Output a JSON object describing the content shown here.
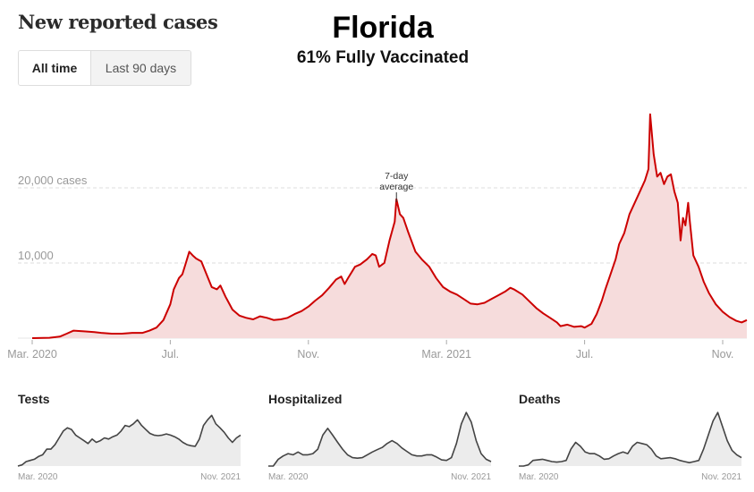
{
  "header": {
    "title": "New reported cases",
    "state": "Florida",
    "subtitle": "61% Fully Vaccinated"
  },
  "toggle": {
    "options": [
      {
        "label": "All time",
        "active": true
      },
      {
        "label": "Last 90 days",
        "active": false
      }
    ]
  },
  "colors": {
    "cases_line": "#cc0000",
    "cases_fill": "#f6dcdc",
    "small_line": "#444444",
    "small_fill": "#ececec",
    "grid": "#dddddd"
  },
  "chart_data": [
    {
      "type": "area",
      "title": "New reported cases",
      "series_name": "7-day average",
      "annotation": {
        "text_line1": "7-day",
        "text_line2": "average",
        "at_month": 10.55
      },
      "ylabel_suffix": "cases",
      "yticks": [
        {
          "value": 10000,
          "label": "10,000"
        },
        {
          "value": 20000,
          "label": "20,000 cases"
        }
      ],
      "ylim": [
        0,
        30000
      ],
      "xlim_months_from_mar_2020": [
        0,
        20.7
      ],
      "xticks": [
        {
          "month": 0,
          "label": "Mar. 2020"
        },
        {
          "month": 4,
          "label": "Jul."
        },
        {
          "month": 8,
          "label": "Nov."
        },
        {
          "month": 12,
          "label": "Mar. 2021"
        },
        {
          "month": 16,
          "label": "Jul."
        },
        {
          "month": 20,
          "label": "Nov."
        }
      ],
      "grid": true,
      "points_month_value": [
        [
          0,
          0
        ],
        [
          0.5,
          50
        ],
        [
          0.8,
          200
        ],
        [
          1.0,
          600
        ],
        [
          1.2,
          1000
        ],
        [
          1.5,
          900
        ],
        [
          1.8,
          800
        ],
        [
          2.0,
          700
        ],
        [
          2.3,
          600
        ],
        [
          2.6,
          600
        ],
        [
          2.9,
          700
        ],
        [
          3.2,
          700
        ],
        [
          3.4,
          1000
        ],
        [
          3.6,
          1400
        ],
        [
          3.8,
          2400
        ],
        [
          4.0,
          4500
        ],
        [
          4.1,
          6500
        ],
        [
          4.25,
          8000
        ],
        [
          4.35,
          8500
        ],
        [
          4.45,
          10000
        ],
        [
          4.55,
          11500
        ],
        [
          4.65,
          11000
        ],
        [
          4.75,
          10600
        ],
        [
          4.9,
          10200
        ],
        [
          5.05,
          8500
        ],
        [
          5.2,
          6800
        ],
        [
          5.35,
          6500
        ],
        [
          5.45,
          7000
        ],
        [
          5.6,
          5500
        ],
        [
          5.8,
          3800
        ],
        [
          6.0,
          3000
        ],
        [
          6.2,
          2700
        ],
        [
          6.4,
          2500
        ],
        [
          6.6,
          2900
        ],
        [
          6.8,
          2700
        ],
        [
          7.0,
          2400
        ],
        [
          7.2,
          2500
        ],
        [
          7.4,
          2700
        ],
        [
          7.6,
          3200
        ],
        [
          7.8,
          3600
        ],
        [
          8.0,
          4200
        ],
        [
          8.2,
          5000
        ],
        [
          8.4,
          5700
        ],
        [
          8.6,
          6700
        ],
        [
          8.8,
          7800
        ],
        [
          8.95,
          8200
        ],
        [
          9.05,
          7200
        ],
        [
          9.15,
          8000
        ],
        [
          9.35,
          9500
        ],
        [
          9.5,
          9800
        ],
        [
          9.7,
          10500
        ],
        [
          9.85,
          11200
        ],
        [
          9.95,
          11000
        ],
        [
          10.05,
          9500
        ],
        [
          10.2,
          10000
        ],
        [
          10.35,
          13000
        ],
        [
          10.5,
          15500
        ],
        [
          10.55,
          18500
        ],
        [
          10.65,
          16500
        ],
        [
          10.75,
          16000
        ],
        [
          10.9,
          14000
        ],
        [
          11.1,
          11500
        ],
        [
          11.3,
          10400
        ],
        [
          11.5,
          9500
        ],
        [
          11.7,
          8000
        ],
        [
          11.9,
          6800
        ],
        [
          12.1,
          6200
        ],
        [
          12.3,
          5800
        ],
        [
          12.5,
          5200
        ],
        [
          12.7,
          4600
        ],
        [
          12.9,
          4500
        ],
        [
          13.1,
          4700
        ],
        [
          13.3,
          5200
        ],
        [
          13.5,
          5700
        ],
        [
          13.7,
          6200
        ],
        [
          13.85,
          6700
        ],
        [
          13.95,
          6500
        ],
        [
          14.2,
          5800
        ],
        [
          14.4,
          4900
        ],
        [
          14.6,
          4000
        ],
        [
          14.8,
          3300
        ],
        [
          15.0,
          2700
        ],
        [
          15.2,
          2100
        ],
        [
          15.3,
          1600
        ],
        [
          15.5,
          1800
        ],
        [
          15.7,
          1500
        ],
        [
          15.9,
          1600
        ],
        [
          16.0,
          1400
        ],
        [
          16.2,
          1900
        ],
        [
          16.35,
          3200
        ],
        [
          16.5,
          5000
        ],
        [
          16.6,
          6500
        ],
        [
          16.75,
          8500
        ],
        [
          16.9,
          10500
        ],
        [
          17.0,
          12500
        ],
        [
          17.15,
          14000
        ],
        [
          17.3,
          16500
        ],
        [
          17.45,
          18000
        ],
        [
          17.6,
          19500
        ],
        [
          17.75,
          21000
        ],
        [
          17.85,
          22500
        ],
        [
          17.9,
          29800
        ],
        [
          18.0,
          24500
        ],
        [
          18.1,
          21500
        ],
        [
          18.2,
          22000
        ],
        [
          18.3,
          20500
        ],
        [
          18.4,
          21500
        ],
        [
          18.5,
          21800
        ],
        [
          18.6,
          19500
        ],
        [
          18.7,
          18000
        ],
        [
          18.78,
          13000
        ],
        [
          18.85,
          16000
        ],
        [
          18.92,
          15000
        ],
        [
          19.0,
          18000
        ],
        [
          19.05,
          15500
        ],
        [
          19.15,
          11000
        ],
        [
          19.3,
          9500
        ],
        [
          19.45,
          7500
        ],
        [
          19.6,
          6000
        ],
        [
          19.8,
          4500
        ],
        [
          20.0,
          3500
        ],
        [
          20.2,
          2800
        ],
        [
          20.4,
          2300
        ],
        [
          20.55,
          2100
        ],
        [
          20.7,
          2400
        ]
      ]
    },
    {
      "type": "area",
      "title": "Tests",
      "xticks": [
        {
          "label": "Mar. 2020"
        },
        {
          "label": "Nov. 2021"
        }
      ],
      "relative_values": [
        0,
        0.02,
        0.08,
        0.1,
        0.12,
        0.17,
        0.2,
        0.3,
        0.3,
        0.38,
        0.5,
        0.62,
        0.68,
        0.65,
        0.55,
        0.5,
        0.45,
        0.4,
        0.48,
        0.42,
        0.45,
        0.5,
        0.48,
        0.52,
        0.55,
        0.62,
        0.72,
        0.7,
        0.75,
        0.82,
        0.72,
        0.65,
        0.58,
        0.55,
        0.54,
        0.55,
        0.57,
        0.55,
        0.52,
        0.48,
        0.42,
        0.38,
        0.36,
        0.35,
        0.48,
        0.72,
        0.82,
        0.9,
        0.75,
        0.68,
        0.6,
        0.5,
        0.42,
        0.5,
        0.55
      ]
    },
    {
      "type": "area",
      "title": "Hospitalized",
      "xticks": [
        {
          "label": "Mar. 2020"
        },
        {
          "label": "Nov. 2021"
        }
      ],
      "relative_values": [
        0,
        0,
        0.12,
        0.18,
        0.22,
        0.2,
        0.25,
        0.2,
        0.2,
        0.22,
        0.3,
        0.55,
        0.67,
        0.55,
        0.42,
        0.3,
        0.2,
        0.15,
        0.14,
        0.15,
        0.2,
        0.25,
        0.29,
        0.33,
        0.4,
        0.45,
        0.4,
        0.32,
        0.26,
        0.2,
        0.18,
        0.18,
        0.2,
        0.2,
        0.16,
        0.11,
        0.1,
        0.15,
        0.4,
        0.75,
        0.95,
        0.78,
        0.45,
        0.22,
        0.12,
        0.08
      ]
    },
    {
      "type": "area",
      "title": "Deaths",
      "xticks": [
        {
          "label": "Mar. 2020"
        },
        {
          "label": "Nov. 2021"
        }
      ],
      "relative_values": [
        0,
        0,
        0.02,
        0.1,
        0.11,
        0.12,
        0.1,
        0.08,
        0.07,
        0.08,
        0.1,
        0.3,
        0.42,
        0.35,
        0.25,
        0.22,
        0.22,
        0.18,
        0.12,
        0.13,
        0.18,
        0.22,
        0.25,
        0.22,
        0.35,
        0.42,
        0.4,
        0.38,
        0.3,
        0.18,
        0.13,
        0.14,
        0.15,
        0.13,
        0.1,
        0.08,
        0.06,
        0.08,
        0.1,
        0.3,
        0.55,
        0.8,
        0.95,
        0.7,
        0.45,
        0.28,
        0.2,
        0.15
      ]
    }
  ]
}
